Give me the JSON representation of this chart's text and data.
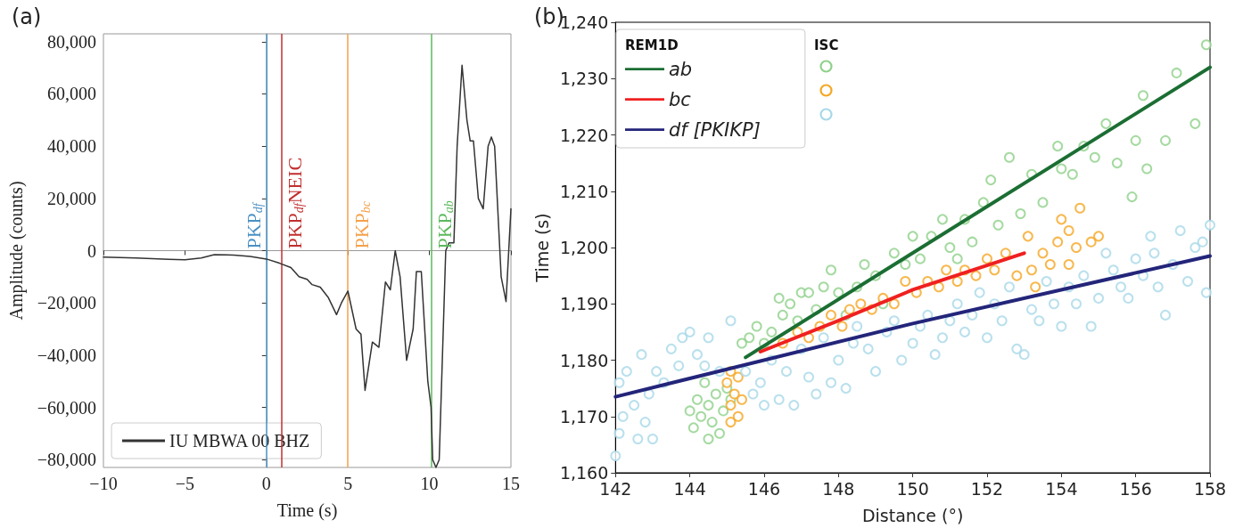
{
  "chart_data": [
    {
      "type": "line",
      "title": "(a)",
      "xlabel": "Time (s)",
      "ylabel": "Amplitude (counts)",
      "xlim": [
        -10,
        15
      ],
      "xticks": [
        {
          "value": -10,
          "label": "−10"
        },
        {
          "value": -5,
          "label": "−5"
        },
        0,
        5,
        10,
        15
      ],
      "ylim": [
        -83000,
        83000
      ],
      "yticks": [
        {
          "value": -80000,
          "label": "−80,000"
        },
        {
          "value": -60000,
          "label": "−60,000"
        },
        {
          "value": -40000,
          "label": "−40,000"
        },
        {
          "value": -20000,
          "label": "−20,000"
        },
        0,
        {
          "value": 20000,
          "label": "20,000"
        },
        {
          "value": 40000,
          "label": "40,000"
        },
        {
          "value": 60000,
          "label": "60,000"
        },
        {
          "value": 80000,
          "label": "80,000"
        }
      ],
      "legend": "bottom left",
      "series": [
        {
          "name": "IU MBWA 00 BHZ",
          "color": "#333333",
          "x": [
            -10,
            -8,
            -6,
            -5,
            -4,
            -3.2,
            -2,
            -1,
            0,
            0.8,
            1.5,
            2,
            2.5,
            2.8,
            3.3,
            3.8,
            4.3,
            4.6,
            5,
            5.5,
            5.8,
            6.05,
            6.5,
            6.9,
            7.3,
            7.6,
            7.9,
            8.2,
            8.6,
            9.0,
            9.2,
            9.5,
            9.9,
            10.1,
            10.2,
            10.4,
            10.6,
            11.0,
            11.2,
            11.5,
            11.7,
            12.0,
            12.3,
            12.5,
            12.7,
            13.0,
            13.3,
            13.6,
            13.8,
            14.0,
            14.4,
            14.7,
            15.0
          ],
          "values": [
            -2500,
            -2800,
            -3300,
            -3500,
            -2800,
            -1500,
            -1700,
            -2200,
            -3200,
            -4800,
            -6500,
            -10000,
            -11000,
            -13000,
            -14000,
            -18000,
            -24500,
            -20000,
            -15500,
            -30000,
            -32000,
            -53500,
            -35000,
            -37000,
            -12000,
            -15000,
            0,
            -10000,
            -42000,
            -30000,
            -8000,
            -8000,
            -50000,
            -60000,
            -80000,
            -83000,
            -80000,
            0,
            3000,
            3000,
            40000,
            71000,
            50000,
            42000,
            42000,
            20000,
            16000,
            40000,
            43500,
            40000,
            -10000,
            -19500,
            16000
          ]
        }
      ],
      "ref_lines": [
        {
          "axis": "x",
          "value": 0,
          "label": "PKP$_{df}$",
          "color": "#4a90c4"
        },
        {
          "axis": "x",
          "value": 0.9,
          "label": "PKP$_{df}$NEIC",
          "color": "#c0302f"
        },
        {
          "axis": "x",
          "value": 5,
          "label": "PKP$_{bc}$",
          "color": "#f5a04a"
        },
        {
          "axis": "x",
          "value": 10.1,
          "label": "PKP$_{ab}$",
          "color": "#5cb85c"
        }
      ]
    },
    {
      "type": "scatter",
      "title": "(b)",
      "xlabel": "Distance (°)",
      "ylabel": "Time (s)",
      "xlim": [
        142,
        158
      ],
      "xticks": [
        142,
        144,
        146,
        148,
        150,
        152,
        154,
        156,
        158
      ],
      "ylim": [
        1160,
        1240
      ],
      "yticks": [
        {
          "value": 1160,
          "label": "1,160"
        },
        {
          "value": 1170,
          "label": "1,170"
        },
        {
          "value": 1180,
          "label": "1,180"
        },
        {
          "value": 1190,
          "label": "1,190"
        },
        {
          "value": 1200,
          "label": "1,200"
        },
        {
          "value": 1210,
          "label": "1,210"
        },
        {
          "value": 1220,
          "label": "1,220"
        },
        {
          "value": 1230,
          "label": "1,230"
        },
        {
          "value": 1240,
          "label": "1,240"
        }
      ],
      "legend": "top left",
      "legend_title": "REM1D",
      "annotations": [
        "ISC"
      ],
      "series": [
        {
          "color": "#8fd18a",
          "marker": "circle",
          "x": [
            144.0,
            144.1,
            144.2,
            144.3,
            144.4,
            144.5,
            144.5,
            144.6,
            144.7,
            144.8,
            144.9,
            145.0,
            145.1,
            145.4,
            145.6,
            145.8,
            146.0,
            146.2,
            146.4,
            146.5,
            146.7,
            146.9,
            147.0,
            147.2,
            147.4,
            147.6,
            147.8,
            148.0,
            148.2,
            148.5,
            148.7,
            149.0,
            149.2,
            149.5,
            149.8,
            150.0,
            150.2,
            150.5,
            150.8,
            151.0,
            151.2,
            151.4,
            151.6,
            151.9,
            152.1,
            152.3,
            152.6,
            152.9,
            153.2,
            153.5,
            153.9,
            154.0,
            154.3,
            154.6,
            154.9,
            155.2,
            155.5,
            155.9,
            156.0,
            156.2,
            156.3,
            156.8,
            157.1,
            157.6,
            157.9
          ],
          "values": [
            1171,
            1168,
            1173,
            1170,
            1176,
            1166,
            1172,
            1169,
            1174,
            1167,
            1171,
            1175,
            1173,
            1183,
            1184,
            1186,
            1183,
            1185,
            1191,
            1188,
            1190,
            1187,
            1192,
            1192,
            1189,
            1193,
            1196,
            1192,
            1188,
            1193,
            1197,
            1195,
            1190,
            1199,
            1197,
            1202,
            1198,
            1202,
            1205,
            1200,
            1198,
            1205,
            1201,
            1208,
            1212,
            1204,
            1216,
            1206,
            1213,
            1208,
            1218,
            1214,
            1213,
            1218,
            1216,
            1222,
            1215,
            1209,
            1219,
            1227,
            1214,
            1219,
            1231,
            1222,
            1236
          ]
        },
        {
          "color": "#f5a623",
          "marker": "circle",
          "x": [
            145.0,
            145.1,
            145.1,
            145.2,
            145.3,
            145.3,
            145.1,
            145.4,
            146.0,
            146.5,
            146.9,
            147.2,
            147.5,
            147.8,
            148.1,
            148.3,
            148.6,
            148.9,
            149.2,
            149.5,
            149.8,
            150.1,
            150.4,
            150.7,
            150.9,
            151.2,
            151.4,
            151.7,
            152.0,
            152.2,
            152.5,
            152.8,
            153.1,
            153.2,
            153.5,
            153.7,
            153.9,
            154.0,
            154.2,
            154.4,
            154.5,
            154.8,
            155.0,
            153.3,
            154.2
          ],
          "values": [
            1176,
            1172,
            1169,
            1174,
            1170,
            1177,
            1178,
            1173,
            null,
            1183,
            1185,
            1184,
            1186,
            1188,
            1186,
            1189,
            1190,
            1189,
            1191,
            1190,
            1194,
            1192,
            1194,
            1193,
            1196,
            1194,
            1196,
            1195,
            1198,
            1196,
            1199,
            1195,
            1202,
            1196,
            1199,
            1197,
            1201,
            1205,
            1203,
            1200,
            1207,
            1201,
            1202,
            1193,
            1197
          ]
        },
        {
          "color": "#a7d8e8",
          "marker": "circle",
          "x": [
            142.0,
            142.1,
            142.1,
            142.2,
            142.3,
            142.5,
            142.6,
            142.7,
            142.8,
            142.9,
            143.0,
            143.1,
            143.3,
            143.5,
            143.7,
            143.8,
            144.0,
            144.2,
            144.4,
            144.5,
            144.8,
            145.1,
            145.5,
            145.7,
            145.9,
            146.0,
            146.2,
            146.4,
            146.6,
            146.8,
            147.0,
            147.2,
            147.4,
            147.6,
            147.8,
            148.0,
            148.2,
            148.4,
            148.5,
            148.8,
            149.0,
            149.3,
            149.5,
            149.7,
            150.0,
            150.2,
            150.4,
            150.6,
            150.8,
            151.0,
            151.2,
            151.4,
            151.6,
            151.8,
            152.0,
            152.2,
            152.4,
            152.6,
            152.8,
            153.0,
            153.2,
            153.4,
            153.6,
            153.8,
            154.0,
            154.2,
            154.4,
            154.6,
            154.8,
            155.0,
            155.2,
            155.4,
            155.6,
            155.8,
            156.0,
            156.2,
            156.4,
            156.6,
            156.8,
            157.0,
            157.2,
            157.4,
            157.6,
            157.8,
            158.0,
            157.9,
            156.5
          ],
          "values": [
            1163,
            1167,
            1176,
            1170,
            1178,
            1172,
            1166,
            1181,
            1169,
            1174,
            1166,
            1178,
            1176,
            1182,
            1179,
            1184,
            1185,
            1181,
            1179,
            1184,
            1178,
            1187,
            1178,
            1174,
            1176,
            1172,
            1180,
            1173,
            1178,
            1172,
            1182,
            1177,
            1174,
            1184,
            1176,
            1180,
            1175,
            1183,
            1186,
            1182,
            1178,
            1185,
            1187,
            1180,
            1183,
            1186,
            1188,
            1181,
            1184,
            1187,
            1190,
            1185,
            1188,
            1192,
            1184,
            1190,
            1187,
            1193,
            1182,
            1181,
            1189,
            1187,
            1194,
            1190,
            1186,
            1193,
            1190,
            1195,
            1186,
            1191,
            1199,
            1196,
            1193,
            1191,
            1198,
            1195,
            1202,
            1193,
            1188,
            1197,
            1203,
            1194,
            1200,
            1201,
            1204,
            1192,
            1199
          ]
        },
        {
          "type": "line",
          "name": "ab",
          "color": "#1b6e33",
          "x": [
            145.5,
            158
          ],
          "values": [
            1180.5,
            1232
          ]
        },
        {
          "type": "line",
          "name": "bc",
          "color": "#f02020",
          "x": [
            145.9,
            148,
            150,
            153
          ],
          "values": [
            1181.5,
            1187,
            1192.5,
            1199
          ]
        },
        {
          "type": "line",
          "name": "df [PKIKP]",
          "color": "#23257a",
          "x": [
            142,
            150,
            158
          ],
          "values": [
            1173.5,
            1186.5,
            1198.5
          ]
        }
      ]
    }
  ]
}
